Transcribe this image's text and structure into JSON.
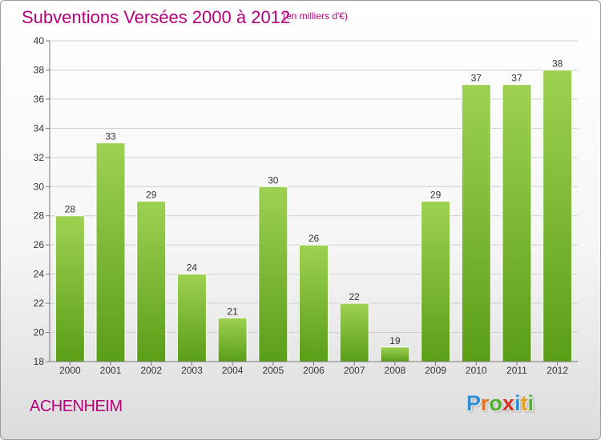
{
  "header": {
    "title": "Subventions Versées 2000 à 2012",
    "subtitle": "(en milliers d'€)"
  },
  "footer": {
    "commune": "ACHENHEIM",
    "logo": {
      "text": "Proxiti",
      "letter_colors": [
        "#2f8fd6",
        "#e07020",
        "#4fb030",
        "#d83020",
        "#2f8fd6",
        "#e0a020",
        "#4fb030"
      ]
    }
  },
  "colors": {
    "title": "#b5007a",
    "bar_top": "#9ed152",
    "bar_bottom": "#5a9e18",
    "grid": "#cfcfcf",
    "axis": "#7a7a7a"
  },
  "chart_data": {
    "type": "bar",
    "title": "Subventions Versées 2000 à 2012",
    "subtitle": "(en milliers d'€)",
    "categories": [
      "2000",
      "2001",
      "2002",
      "2003",
      "2004",
      "2005",
      "2006",
      "2007",
      "2008",
      "2009",
      "2010",
      "2011",
      "2012"
    ],
    "values": [
      28,
      33,
      29,
      24,
      21,
      30,
      26,
      22,
      19,
      29,
      37,
      37,
      38
    ],
    "data_labels": [
      "28",
      "33",
      "29",
      "24",
      "21",
      "30",
      "26",
      "22",
      "19",
      "29",
      "37",
      "37",
      "38"
    ],
    "ylim": [
      18,
      40
    ],
    "yticks": [
      18,
      20,
      22,
      24,
      26,
      28,
      30,
      32,
      34,
      36,
      38,
      40
    ],
    "grid": true
  }
}
